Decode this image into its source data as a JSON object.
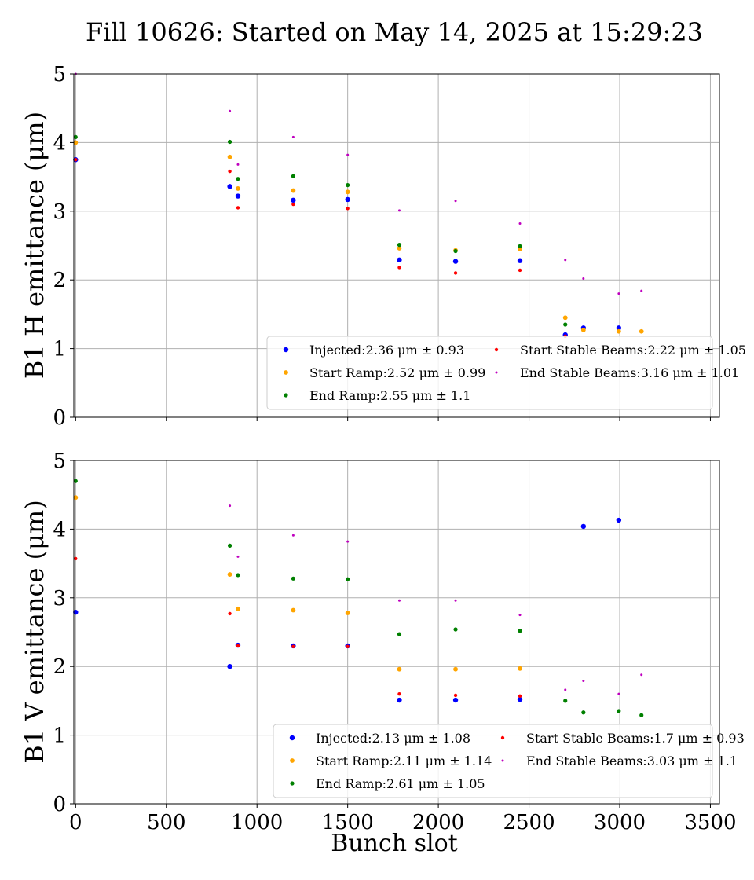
{
  "title": "Fill 10626: Started on May 14, 2025 at 15:29:23",
  "xlabel": "Bunch slot",
  "chart_data": [
    {
      "type": "scatter",
      "ylabel": "B1 H emittance (μm)",
      "xlim": [
        -10,
        3550
      ],
      "ylim": [
        0,
        5
      ],
      "xticks": [
        0,
        500,
        1000,
        1500,
        2000,
        2500,
        3000,
        3500
      ],
      "yticks": [
        0,
        1,
        2,
        3,
        4,
        5
      ],
      "grid": true,
      "legend_position": "lower-right",
      "series": [
        {
          "name": "Injected",
          "label": "Injected:2.36 μm ± 0.93",
          "color": "#0000ff",
          "size": 3.2,
          "x": [
            0,
            850,
            895,
            1200,
            1500,
            1785,
            2095,
            2450,
            2700,
            2800,
            2995
          ],
          "y": [
            3.75,
            3.36,
            3.22,
            3.16,
            3.17,
            2.29,
            2.27,
            2.28,
            1.2,
            1.3,
            1.3
          ]
        },
        {
          "name": "Start Ramp",
          "label": "Start Ramp:2.52 μm ± 0.99",
          "color": "#ffa500",
          "size": 2.9,
          "x": [
            0,
            850,
            895,
            1200,
            1500,
            1785,
            2095,
            2450,
            2700,
            2800,
            2995,
            3120
          ],
          "y": [
            4.0,
            3.79,
            3.33,
            3.3,
            3.28,
            2.46,
            2.43,
            2.45,
            1.45,
            1.27,
            1.25,
            1.25
          ]
        },
        {
          "name": "End Ramp",
          "label": "End Ramp:2.55 μm ± 1.1",
          "color": "#008000",
          "size": 2.6,
          "x": [
            0,
            850,
            895,
            1200,
            1500,
            1785,
            2095,
            2450,
            2700
          ],
          "y": [
            4.08,
            4.01,
            3.47,
            3.51,
            3.38,
            2.51,
            2.42,
            2.49,
            1.35
          ]
        },
        {
          "name": "Start Stable Beams",
          "label": "Start Stable Beams:2.22 μm ± 1.05",
          "color": "#ff0000",
          "size": 2.2,
          "x": [
            0,
            850,
            895,
            1200,
            1500,
            1785,
            2095,
            2450,
            2700
          ],
          "y": [
            3.75,
            3.58,
            3.05,
            3.1,
            3.04,
            2.18,
            2.1,
            2.14,
            1.18
          ]
        },
        {
          "name": "End Stable Beams",
          "label": "End Stable Beams:3.16 μm ± 1.01",
          "color": "#bf00bf",
          "size": 1.5,
          "x": [
            0,
            850,
            895,
            1200,
            1500,
            1785,
            2095,
            2450,
            2700,
            2800,
            2995,
            3120
          ],
          "y": [
            5.0,
            4.46,
            3.68,
            4.08,
            3.82,
            3.01,
            3.15,
            2.82,
            2.29,
            2.02,
            1.8,
            1.84
          ]
        }
      ],
      "legend": {
        "entries": [
          {
            "text": "Injected:2.36 μm ± 0.93"
          },
          {
            "text": "Start Ramp:2.52 μm ± 0.99"
          },
          {
            "text": "End Ramp:2.55 μm ± 1.1"
          },
          {
            "text": "Start Stable Beams:2.22 μm ± 1.05"
          },
          {
            "text": "End Stable Beams:3.16 μm ± 1.01"
          }
        ]
      }
    },
    {
      "type": "scatter",
      "ylabel": "B1 V emittance (μm)",
      "xlim": [
        -10,
        3550
      ],
      "ylim": [
        0,
        5
      ],
      "xticks": [
        0,
        500,
        1000,
        1500,
        2000,
        2500,
        3000,
        3500
      ],
      "yticks": [
        0,
        1,
        2,
        3,
        4,
        5
      ],
      "grid": true,
      "legend_position": "lower-right",
      "series": [
        {
          "name": "Injected",
          "label": "Injected:2.13 μm ± 1.08",
          "color": "#0000ff",
          "size": 3.2,
          "x": [
            0,
            850,
            895,
            1200,
            1500,
            1785,
            2095,
            2450,
            2800,
            2995
          ],
          "y": [
            2.79,
            2.0,
            2.31,
            2.3,
            2.3,
            1.51,
            1.51,
            1.52,
            4.04,
            4.13
          ]
        },
        {
          "name": "Start Ramp",
          "label": "Start Ramp:2.11 μm ± 1.14",
          "color": "#ffa500",
          "size": 2.9,
          "x": [
            0,
            850,
            895,
            1200,
            1500,
            1785,
            2095,
            2450
          ],
          "y": [
            4.46,
            3.34,
            2.84,
            2.82,
            2.78,
            1.96,
            1.96,
            1.97
          ]
        },
        {
          "name": "End Ramp",
          "label": "End Ramp:2.61 μm ± 1.05",
          "color": "#008000",
          "size": 2.6,
          "x": [
            0,
            850,
            895,
            1200,
            1500,
            1785,
            2095,
            2450,
            2700,
            2800,
            2995,
            3120
          ],
          "y": [
            4.7,
            3.76,
            3.33,
            3.28,
            3.27,
            2.47,
            2.54,
            2.52,
            1.5,
            1.33,
            1.35,
            1.29
          ]
        },
        {
          "name": "Start Stable Beams",
          "label": "Start Stable Beams:1.7 μm ± 0.93",
          "color": "#ff0000",
          "size": 2.2,
          "x": [
            0,
            850,
            895,
            1200,
            1500,
            1785,
            2095,
            2450
          ],
          "y": [
            3.57,
            2.77,
            2.3,
            2.29,
            2.29,
            1.6,
            1.58,
            1.57
          ]
        },
        {
          "name": "End Stable Beams",
          "label": "End Stable Beams:3.03 μm ± 1.1",
          "color": "#bf00bf",
          "size": 1.5,
          "x": [
            850,
            895,
            1200,
            1500,
            1785,
            2095,
            2450,
            2700,
            2800,
            2995,
            3120
          ],
          "y": [
            4.34,
            3.6,
            3.91,
            3.82,
            2.96,
            2.96,
            2.75,
            1.66,
            1.79,
            1.6,
            1.88
          ]
        }
      ],
      "legend": {
        "entries": [
          {
            "text": "Injected:2.13 μm ± 1.08"
          },
          {
            "text": "Start Ramp:2.11 μm ± 1.14"
          },
          {
            "text": "End Ramp:2.61 μm ± 1.05"
          },
          {
            "text": "Start Stable Beams:1.7 μm ± 0.93"
          },
          {
            "text": "End Stable Beams:3.03 μm ± 1.1"
          }
        ]
      }
    }
  ]
}
